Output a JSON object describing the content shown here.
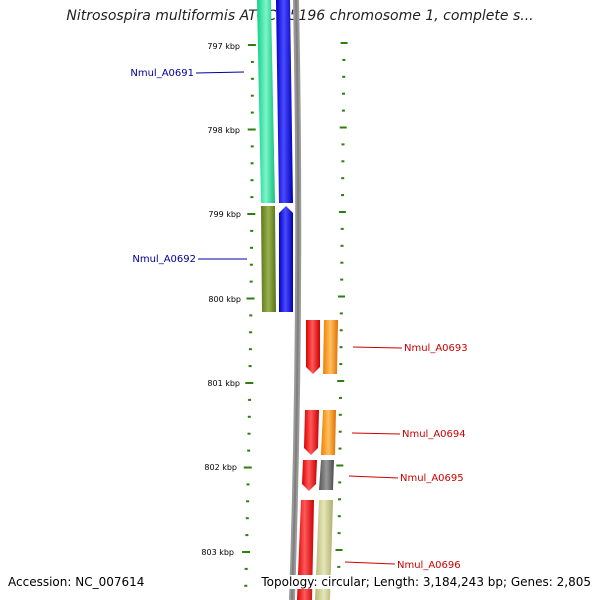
{
  "title": "Nitrosospira multiformis ATCC 25196 chromosome 1, complete s...",
  "footer": {
    "accession": "Accession: NC_007614",
    "summary": "Topology: circular; Length: 3,184,243 bp; Genes: 2,805"
  },
  "scale": {
    "unit": "kbp",
    "ticks": [
      "797 kbp",
      "798 kbp",
      "799 kbp",
      "800 kbp",
      "801 kbp",
      "802 kbp",
      "803 kbp"
    ]
  },
  "genes": [
    {
      "label": "Nmul_A0691",
      "strand": "+",
      "color": "#00aa00",
      "link_color": "#000099"
    },
    {
      "label": "Nmul_A0692",
      "strand": "+",
      "color": "#556b2f",
      "link_color": "#000099"
    },
    {
      "label": "Nmul_A0693",
      "strand": "-",
      "color": "#ff0000",
      "link_color": "#cc0000"
    },
    {
      "label": "Nmul_A0694",
      "strand": "-",
      "color": "#ff0000",
      "link_color": "#cc0000"
    },
    {
      "label": "Nmul_A0695",
      "strand": "-",
      "color": "#ff0000",
      "link_color": "#cc0000"
    },
    {
      "label": "Nmul_A0696",
      "strand": "-",
      "color": "#ff0000",
      "link_color": "#cc0000"
    }
  ],
  "colors": {
    "teal": "#22d98f",
    "blue": "#1010ee",
    "olive": "#6b8a28",
    "red": "#ee0a0a",
    "orange": "#ff8c00",
    "gray": "#666666",
    "khaki": "#c8c88a",
    "backbone": "#888888",
    "tick": "#2e7d0e"
  }
}
